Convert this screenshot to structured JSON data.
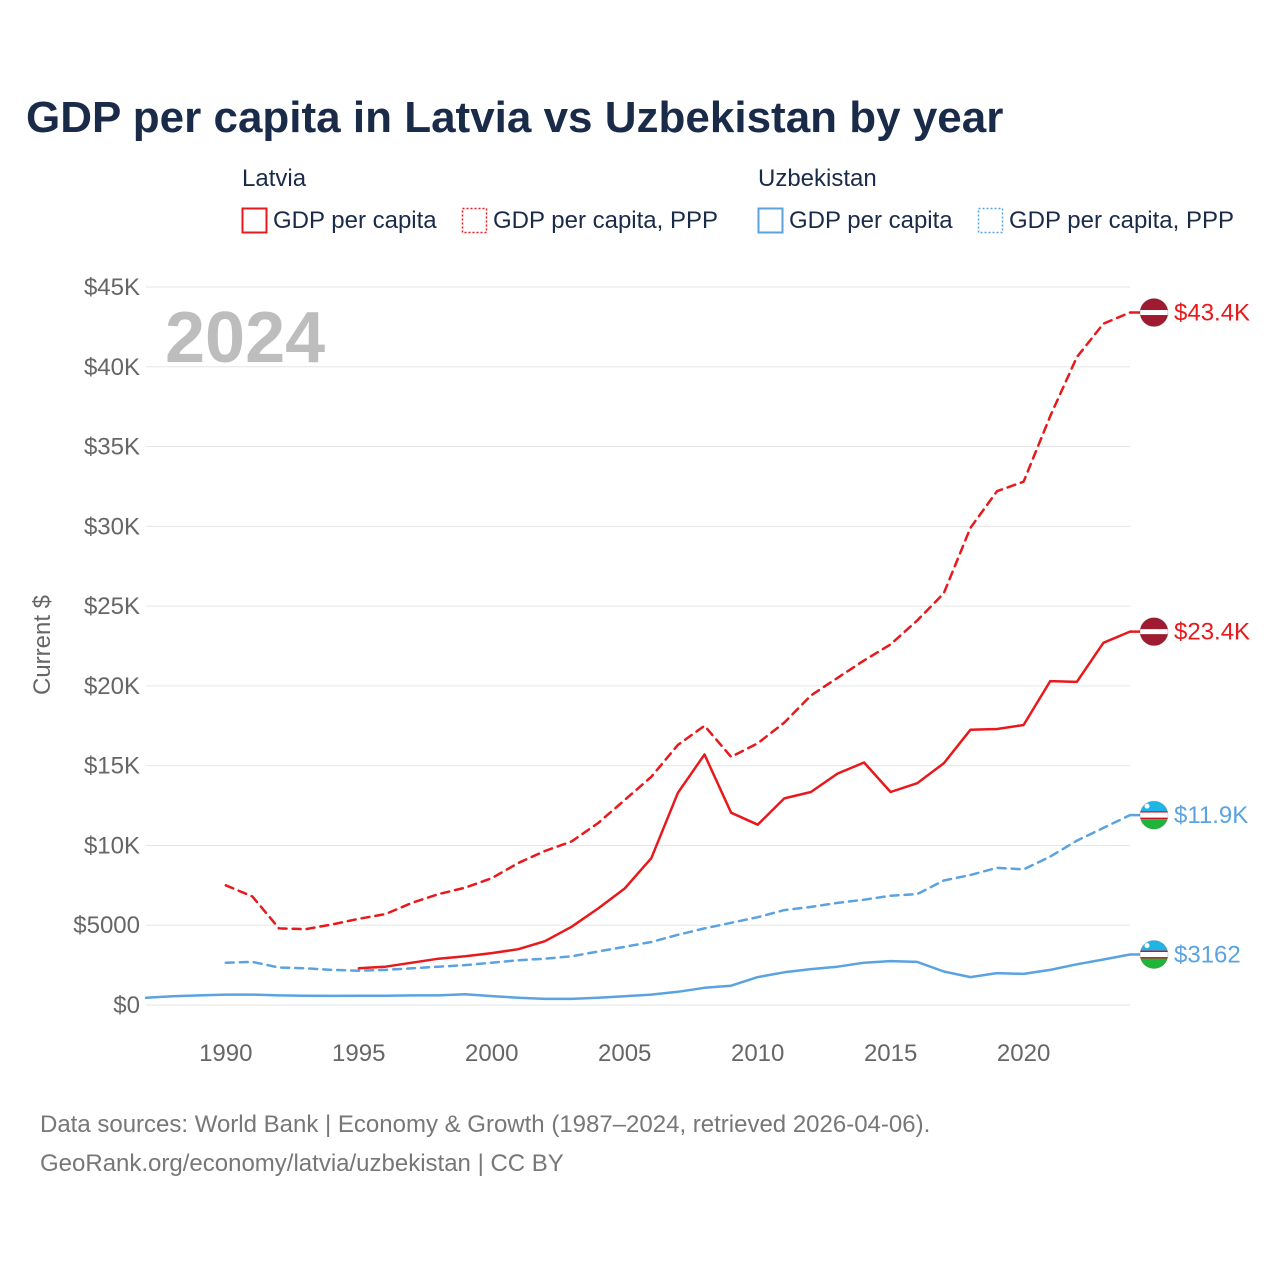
{
  "title": "GDP per capita in Latvia vs Uzbekistan by year",
  "year_watermark": "2024",
  "ylabel": "Current $",
  "legend": {
    "groups": [
      {
        "name": "Latvia",
        "items": [
          {
            "label": "GDP per capita",
            "style": "solid",
            "color": "#e8191c"
          },
          {
            "label": "GDP per capita, PPP",
            "style": "dotted",
            "color": "#e8191c"
          }
        ]
      },
      {
        "name": "Uzbekistan",
        "items": [
          {
            "label": "GDP per capita",
            "style": "solid",
            "color": "#5aa3e0"
          },
          {
            "label": "GDP per capita, PPP",
            "style": "dotted",
            "color": "#5aa3e0"
          }
        ]
      }
    ]
  },
  "source": {
    "line1": "Data sources: World Bank | Economy & Growth (1987–2024, retrieved 2026-04-06).",
    "line2": "GeoRank.org/economy/latvia/uzbekistan | CC BY"
  },
  "chart_data": {
    "type": "line",
    "title": "GDP per capita in Latvia vs Uzbekistan by year",
    "xlabel": "",
    "ylabel": "Current $",
    "xlim": [
      1987,
      2024
    ],
    "ylim": [
      0,
      45000
    ],
    "x_ticks": [
      1990,
      1995,
      2000,
      2005,
      2010,
      2015,
      2020
    ],
    "y_ticks": [
      {
        "value": 0,
        "label": "$0"
      },
      {
        "value": 5000,
        "label": "$5000"
      },
      {
        "value": 10000,
        "label": "$10K"
      },
      {
        "value": 15000,
        "label": "$15K"
      },
      {
        "value": 20000,
        "label": "$20K"
      },
      {
        "value": 25000,
        "label": "$25K"
      },
      {
        "value": 30000,
        "label": "$30K"
      },
      {
        "value": 35000,
        "label": "$35K"
      },
      {
        "value": 40000,
        "label": "$40K"
      },
      {
        "value": 45000,
        "label": "$45K"
      }
    ],
    "series": [
      {
        "name": "Latvia GDP per capita, PPP",
        "country": "Latvia",
        "color": "#e8191c",
        "dash": "dashed",
        "end_label": "$43.4K",
        "x": [
          1990,
          1991,
          1992,
          1993,
          1994,
          1995,
          1996,
          1997,
          1998,
          1999,
          2000,
          2001,
          2002,
          2003,
          2004,
          2005,
          2006,
          2007,
          2008,
          2009,
          2010,
          2011,
          2012,
          2013,
          2014,
          2015,
          2016,
          2017,
          2018,
          2019,
          2020,
          2021,
          2022,
          2023,
          2024
        ],
        "values": [
          7500,
          6800,
          4800,
          4750,
          5050,
          5400,
          5700,
          6400,
          6950,
          7350,
          7950,
          8900,
          9650,
          10250,
          11400,
          12850,
          14300,
          16300,
          17500,
          15550,
          16400,
          17700,
          19400,
          20500,
          21600,
          22600,
          24100,
          25800,
          29900,
          32200,
          32800,
          36900,
          40600,
          42700,
          43400
        ]
      },
      {
        "name": "Latvia GDP per capita",
        "country": "Latvia",
        "color": "#e8191c",
        "dash": "solid",
        "end_label": "$23.4K",
        "x": [
          1995,
          1996,
          1997,
          1998,
          1999,
          2000,
          2001,
          2002,
          2003,
          2004,
          2005,
          2006,
          2007,
          2008,
          2009,
          2010,
          2011,
          2012,
          2013,
          2014,
          2015,
          2016,
          2017,
          2018,
          2019,
          2020,
          2021,
          2022,
          2023,
          2024
        ],
        "values": [
          2300,
          2400,
          2650,
          2900,
          3050,
          3250,
          3500,
          4000,
          4900,
          6050,
          7300,
          9200,
          13300,
          15700,
          12050,
          11300,
          12950,
          13350,
          14500,
          15200,
          13350,
          13900,
          15150,
          17250,
          17300,
          17550,
          20300,
          20250,
          22700,
          23400
        ]
      },
      {
        "name": "Uzbekistan GDP per capita, PPP",
        "country": "Uzbekistan",
        "color": "#5aa3e0",
        "dash": "dashed",
        "end_label": "$11.9K",
        "x": [
          1990,
          1991,
          1992,
          1993,
          1994,
          1995,
          1996,
          1997,
          1998,
          1999,
          2000,
          2001,
          2002,
          2003,
          2004,
          2005,
          2006,
          2007,
          2008,
          2009,
          2010,
          2011,
          2012,
          2013,
          2014,
          2015,
          2016,
          2017,
          2018,
          2019,
          2020,
          2021,
          2022,
          2023,
          2024
        ],
        "values": [
          2650,
          2700,
          2350,
          2300,
          2200,
          2150,
          2200,
          2300,
          2400,
          2500,
          2650,
          2800,
          2900,
          3050,
          3350,
          3650,
          3950,
          4400,
          4800,
          5150,
          5500,
          5950,
          6150,
          6400,
          6600,
          6850,
          6950,
          7800,
          8150,
          8600,
          8500,
          9300,
          10300,
          11100,
          11900
        ]
      },
      {
        "name": "Uzbekistan GDP per capita",
        "country": "Uzbekistan",
        "color": "#5aa3e0",
        "dash": "solid",
        "end_label": "$3162",
        "x": [
          1987,
          1988,
          1989,
          1990,
          1991,
          1992,
          1993,
          1994,
          1995,
          1996,
          1997,
          1998,
          1999,
          2000,
          2001,
          2002,
          2003,
          2004,
          2005,
          2006,
          2007,
          2008,
          2009,
          2010,
          2011,
          2012,
          2013,
          2014,
          2015,
          2016,
          2017,
          2018,
          2019,
          2020,
          2021,
          2022,
          2023,
          2024
        ],
        "values": [
          450,
          550,
          600,
          650,
          650,
          600,
          580,
          570,
          580,
          580,
          600,
          600,
          680,
          560,
          460,
          380,
          380,
          450,
          550,
          650,
          830,
          1080,
          1210,
          1750,
          2050,
          2250,
          2400,
          2650,
          2750,
          2700,
          2100,
          1750,
          2000,
          1950,
          2200,
          2550,
          2850,
          3162
        ]
      }
    ]
  }
}
